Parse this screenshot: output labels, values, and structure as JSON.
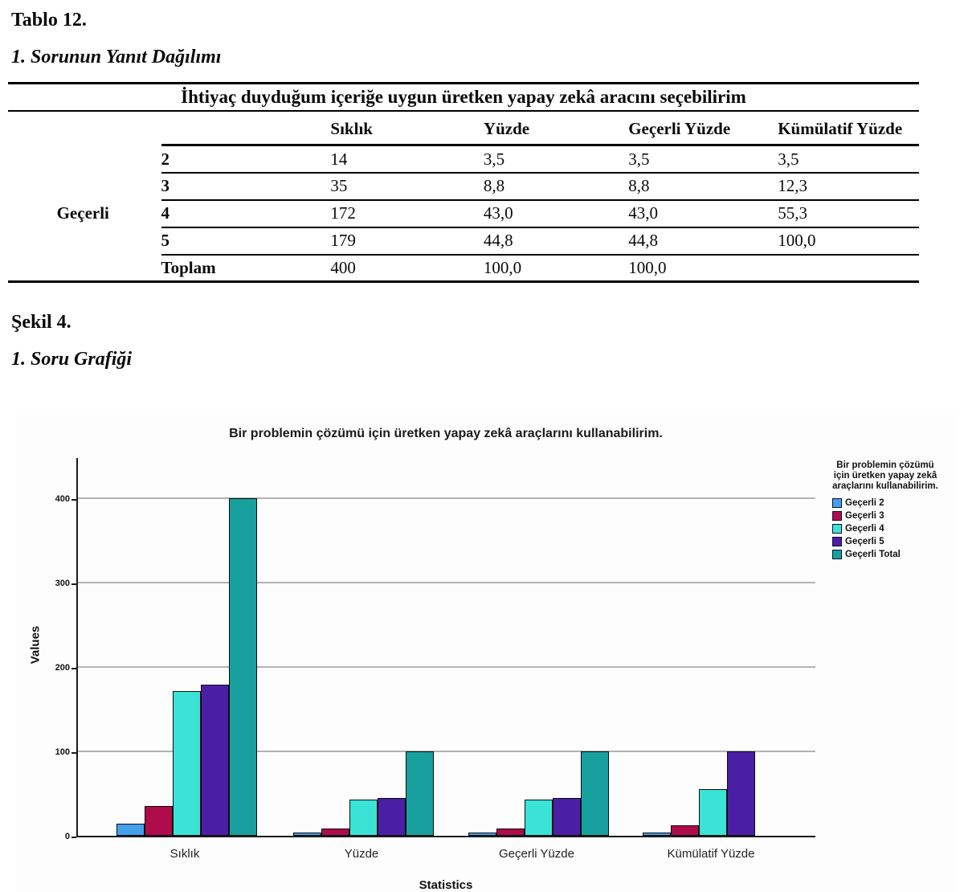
{
  "document": {
    "table_label": "Tablo 12.",
    "table_caption": "1. Sorunun Yanıt Dağılımı",
    "figure_label": "Şekil 4.",
    "figure_caption": "1. Soru Grafiği"
  },
  "table": {
    "span_header": "İhtiyaç duyduğum içeriğe uygun üretken yapay zekâ aracını seçebilirim",
    "col_headers": [
      "Sıklık",
      "Yüzde",
      "Geçerli Yüzde",
      "Kümülatif Yüzde"
    ],
    "row_group_label": "Geçerli",
    "rows": [
      [
        "2",
        "14",
        "3,5",
        "3,5",
        "3,5"
      ],
      [
        "3",
        "35",
        "8,8",
        "8,8",
        "12,3"
      ],
      [
        "4",
        "172",
        "43,0",
        "43,0",
        "55,3"
      ],
      [
        "5",
        "179",
        "44,8",
        "44,8",
        "100,0"
      ],
      [
        "Toplam",
        "400",
        "100,0",
        "100,0",
        ""
      ]
    ]
  },
  "chart_data": {
    "type": "bar",
    "title": "Bir problemin çözümü için üretken yapay zekâ araçlarını kullanabilirim.",
    "xlabel": "Statistics",
    "ylabel": "Values",
    "categories": [
      "Sıklık",
      "Yüzde",
      "Geçerli Yüzde",
      "Kümülatif Yüzde"
    ],
    "series": [
      {
        "name": "Geçerli 2",
        "color": "#45a0ec",
        "values": [
          14,
          3.5,
          3.5,
          3.5
        ]
      },
      {
        "name": "Geçerli 3",
        "color": "#ae0c4b",
        "values": [
          35,
          8.8,
          8.8,
          12.3
        ]
      },
      {
        "name": "Geçerli 4",
        "color": "#3be3d6",
        "values": [
          172,
          43.0,
          43.0,
          55.3
        ]
      },
      {
        "name": "Geçerli 5",
        "color": "#4a1fa6",
        "values": [
          179,
          44.8,
          44.8,
          100.0
        ]
      },
      {
        "name": "Geçerli Total",
        "color": "#17a09e",
        "values": [
          400,
          100.0,
          100.0,
          null
        ]
      }
    ],
    "ylim": [
      0,
      450
    ],
    "yticks": [
      0,
      100,
      200,
      300,
      400
    ],
    "grid": true,
    "legend_title": "Bir problemin çözümü için üretken yapay zekâ araçlarını kullanabilirim.",
    "legend_position": "right"
  }
}
